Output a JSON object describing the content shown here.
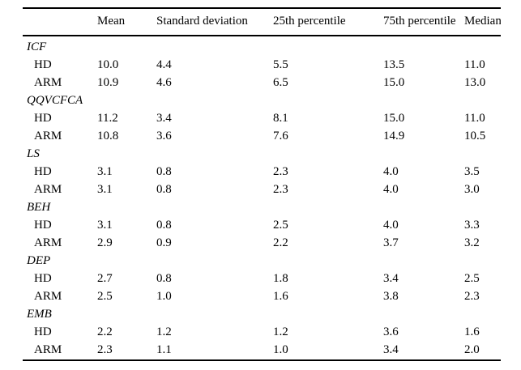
{
  "table": {
    "columns": [
      "",
      "Mean",
      "Standard deviation",
      "25th percentile",
      "75th percentile",
      "Median"
    ],
    "groups": [
      {
        "name": "ICF",
        "rows": [
          {
            "label": "HD",
            "values": [
              "10.0",
              "4.4",
              "5.5",
              "13.5",
              "11.0"
            ]
          },
          {
            "label": "ARM",
            "values": [
              "10.9",
              "4.6",
              "6.5",
              "15.0",
              "13.0"
            ]
          }
        ]
      },
      {
        "name": "QQVCFCA",
        "rows": [
          {
            "label": "HD",
            "values": [
              "11.2",
              "3.4",
              "8.1",
              "15.0",
              "11.0"
            ]
          },
          {
            "label": "ARM",
            "values": [
              "10.8",
              "3.6",
              "7.6",
              "14.9",
              "10.5"
            ]
          }
        ]
      },
      {
        "name": "LS",
        "rows": [
          {
            "label": "HD",
            "values": [
              "3.1",
              "0.8",
              "2.3",
              "4.0",
              "3.5"
            ]
          },
          {
            "label": "ARM",
            "values": [
              "3.1",
              "0.8",
              "2.3",
              "4.0",
              "3.0"
            ]
          }
        ]
      },
      {
        "name": "BEH",
        "rows": [
          {
            "label": "HD",
            "values": [
              "3.1",
              "0.8",
              "2.5",
              "4.0",
              "3.3"
            ]
          },
          {
            "label": "ARM",
            "values": [
              "2.9",
              "0.9",
              "2.2",
              "3.7",
              "3.2"
            ]
          }
        ]
      },
      {
        "name": "DEP",
        "rows": [
          {
            "label": "HD",
            "values": [
              "2.7",
              "0.8",
              "1.8",
              "3.4",
              "2.5"
            ]
          },
          {
            "label": "ARM",
            "values": [
              "2.5",
              "1.0",
              "1.6",
              "3.8",
              "2.3"
            ]
          }
        ]
      },
      {
        "name": "EMB",
        "rows": [
          {
            "label": "HD",
            "values": [
              "2.2",
              "1.2",
              "1.2",
              "3.6",
              "1.6"
            ]
          },
          {
            "label": "ARM",
            "values": [
              "2.3",
              "1.1",
              "1.0",
              "3.4",
              "2.0"
            ]
          }
        ]
      }
    ]
  }
}
